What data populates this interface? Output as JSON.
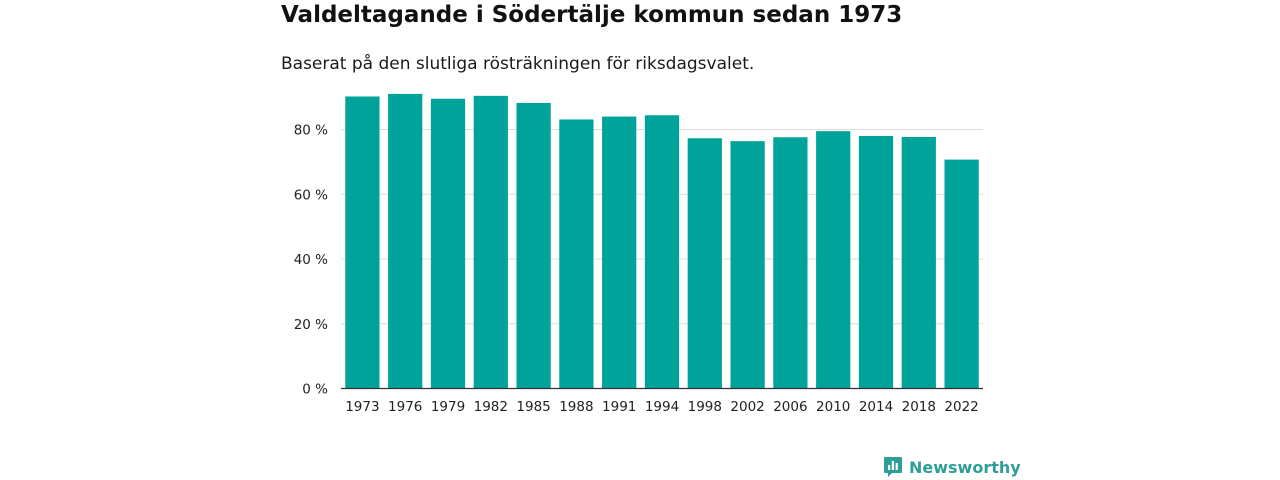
{
  "header": {
    "title": "Valdeltagande i Södertälje kommun sedan 1973",
    "subtitle": "Baserat på den slutliga rösträkningen för riksdagsvalet."
  },
  "brand": {
    "name": "Newsworthy",
    "icon": "newsworthy-logo-icon",
    "color": "#2f9e98"
  },
  "chart_data": {
    "type": "bar",
    "title": "Valdeltagande i Södertälje kommun sedan 1973",
    "subtitle": "Baserat på den slutliga rösträkningen för riksdagsvalet.",
    "xlabel": "",
    "ylabel": "",
    "categories": [
      "1973",
      "1976",
      "1979",
      "1982",
      "1985",
      "1988",
      "1991",
      "1994",
      "1998",
      "2002",
      "2006",
      "2010",
      "2014",
      "2018",
      "2022"
    ],
    "values": [
      90.2,
      91.0,
      89.5,
      90.4,
      88.2,
      83.1,
      84.0,
      84.4,
      77.3,
      76.4,
      77.6,
      79.5,
      78.0,
      77.7,
      70.7
    ],
    "ylim": [
      0,
      90
    ],
    "yticks": [
      0,
      20,
      40,
      60,
      80
    ],
    "ytick_labels": [
      "0 %",
      "20 %",
      "40 %",
      "60 %",
      "80 %"
    ],
    "grid": true,
    "bar_color": "#00a39a"
  }
}
